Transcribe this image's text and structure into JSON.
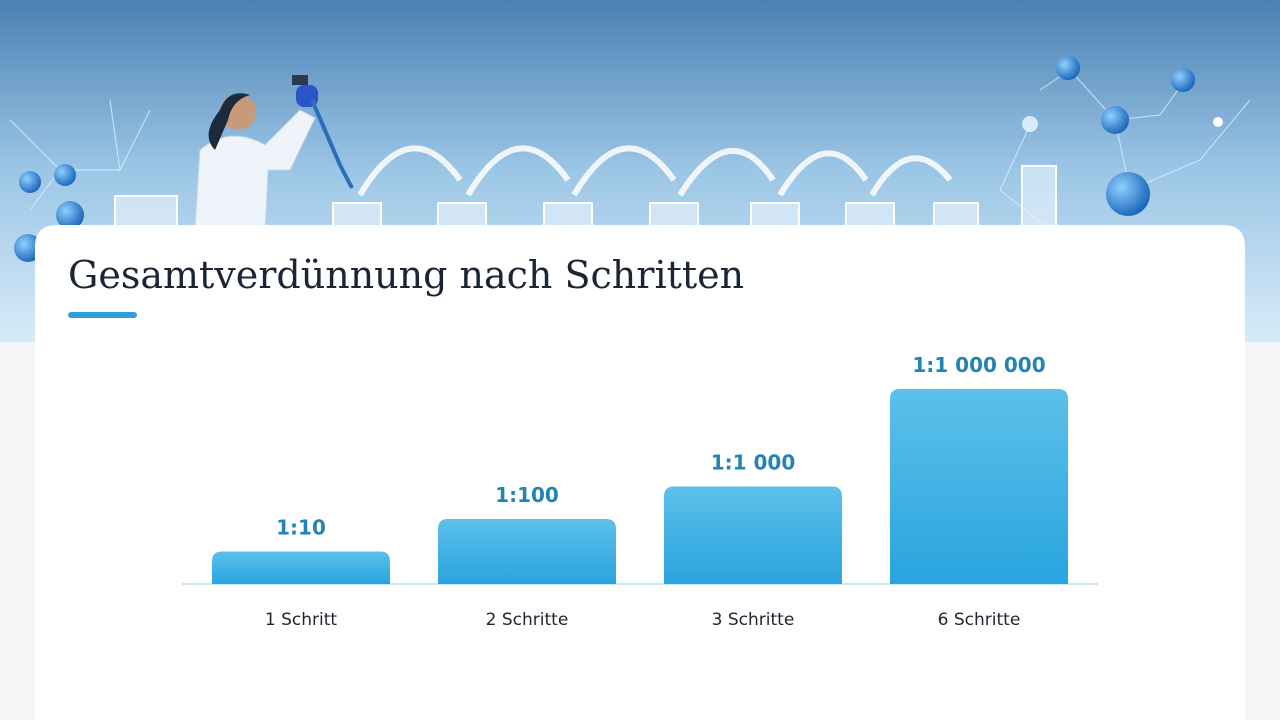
{
  "chart_data": {
    "type": "bar",
    "title": "Gesamtverdünnung nach Schritten",
    "categories": [
      "1 Schritt",
      "2 Schritte",
      "3 Schritte",
      "6 Schritte"
    ],
    "values": [
      10,
      100,
      1000,
      1000000
    ],
    "value_labels": [
      "1:10",
      "1:100",
      "1:1 000",
      "1:1 000 000"
    ],
    "log_scale": true,
    "ylim": [
      1,
      1000000
    ],
    "color": "#3aaee3"
  }
}
